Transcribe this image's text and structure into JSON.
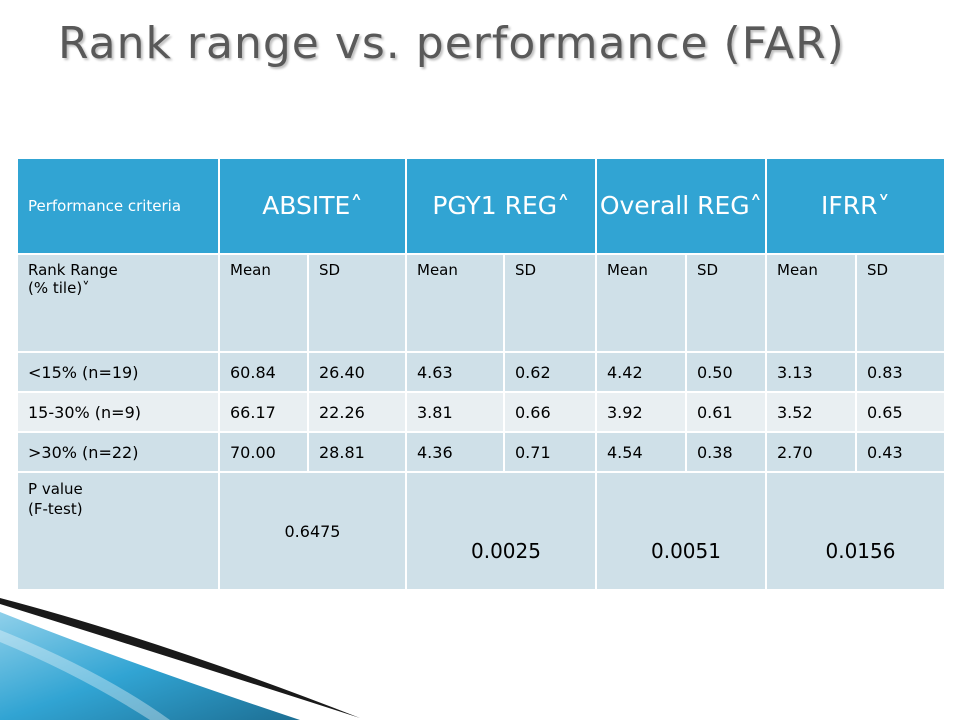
{
  "title": "Rank range vs. performance (FAR)",
  "header": {
    "criteria_label": "Performance criteria",
    "groups": [
      "ABSITE˄",
      "PGY1 REG˄",
      "Overall REG˄",
      "IFRR˅"
    ]
  },
  "subheader": {
    "rank_range_line1": "Rank Range",
    "rank_range_line2": "(% tile)˅",
    "mean": "Mean",
    "sd": "SD"
  },
  "rows": [
    {
      "label": "<15% (n=19)",
      "values": [
        "60.84",
        "26.40",
        "4.63",
        "0.62",
        "4.42",
        "0.50",
        "3.13",
        "0.83"
      ]
    },
    {
      "label": "15-30% (n=9)",
      "values": [
        "66.17",
        "22.26",
        "3.81",
        "0.66",
        "3.92",
        "0.61",
        "3.52",
        "0.65"
      ]
    },
    {
      "label": ">30% (n=22)",
      "values": [
        "70.00",
        "28.81",
        "4.36",
        "0.71",
        "4.54",
        "0.38",
        "2.70",
        "0.43"
      ]
    }
  ],
  "pvalue": {
    "label_line1": "P value",
    "label_line2": "(F-test)",
    "values": [
      "0.6475",
      "0.0025",
      "0.0051",
      "0.0156"
    ]
  },
  "colors": {
    "header_bg": "#31a4d3",
    "row_bg": "#cfe0e8",
    "row_alt_bg": "#e9eff2",
    "title": "#595959"
  }
}
